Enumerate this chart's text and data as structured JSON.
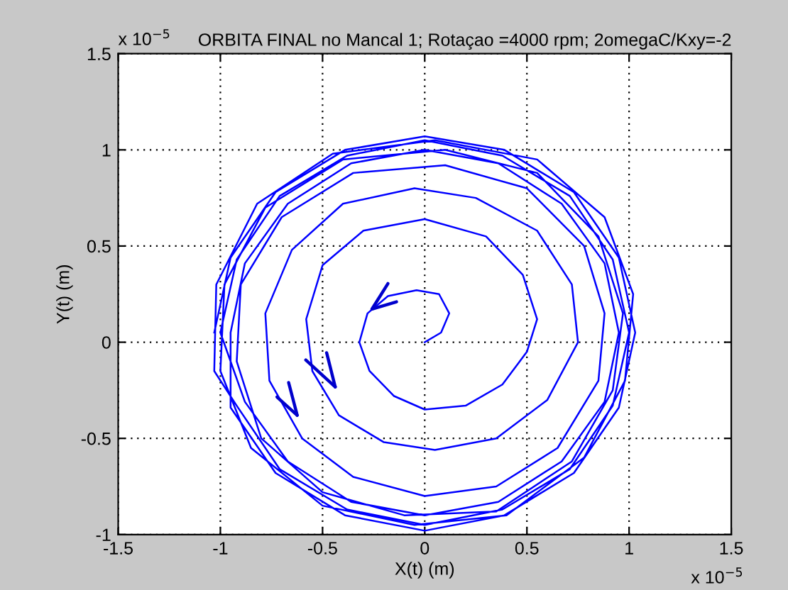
{
  "chart_data": {
    "type": "line",
    "title": "ORBITA FINAL no Mancal 1; Rotaçao =4000 rpm; 2omegaC/Kxy=-2",
    "xlabel": "X(t) (m)",
    "ylabel": "Y(t) (m)",
    "annotations": [
      "x 10$^{−5}$",
      "x 10$^{−5}$"
    ],
    "xlim": [
      -1.5,
      1.5
    ],
    "ylim": [
      -1,
      1.5
    ],
    "xticks": [
      -1.5,
      -1,
      -0.5,
      0,
      0.5,
      1,
      1.5
    ],
    "yticks": [
      -1,
      -0.5,
      0,
      0.5,
      1,
      1.5
    ],
    "grid": true,
    "line_style": "solid",
    "marker": "none",
    "series": [
      {
        "color": "#0000ff",
        "x": [
          0,
          0.08,
          0.12,
          0.07,
          -0.04,
          -0.18,
          -0.28,
          -0.32,
          -0.27,
          -0.15,
          0,
          0.2,
          0.38,
          0.5,
          0.55,
          0.48,
          0.3,
          0,
          -0.3,
          -0.5,
          -0.58,
          -0.55,
          -0.42,
          -0.2,
          0.05,
          0.35,
          0.6,
          0.75,
          0.72,
          0.55,
          0.25,
          -0.05,
          -0.4,
          -0.65,
          -0.78,
          -0.76,
          -0.6,
          -0.35,
          0,
          0.35,
          0.65,
          0.85,
          0.88,
          0.78,
          0.5,
          0.1,
          -0.35,
          -0.7,
          -0.9,
          -0.92,
          -0.8,
          -0.5,
          -0.1,
          0.35,
          0.72,
          0.92,
          0.97,
          0.85,
          0.55,
          0.1,
          -0.4,
          -0.78,
          -0.98,
          -1.0,
          -0.85,
          -0.5,
          -0.05,
          0.4,
          0.78,
          0.98,
          1.02,
          0.88,
          0.55,
          0.05,
          -0.45,
          -0.82,
          -1.02,
          -1.03,
          -0.92,
          -0.71,
          -0.38,
          0,
          0.38,
          0.71,
          0.92,
          1.0,
          0.92,
          0.71,
          0.38,
          0,
          -0.38,
          -0.71,
          -0.92,
          -1.0,
          -0.88,
          -0.67,
          -0.36,
          0,
          0.36,
          0.67,
          0.88,
          0.95,
          0.88,
          0.67,
          0.36,
          0,
          -0.36,
          -0.67,
          -0.88,
          -0.95,
          -0.95,
          -0.73,
          -0.39,
          0,
          0.39,
          0.73,
          0.95,
          1.03,
          0.95,
          0.73,
          0.39,
          0,
          -0.39,
          -0.73,
          -0.95,
          -1.03
        ],
        "values": [
          0,
          0.05,
          0.15,
          0.25,
          0.27,
          0.24,
          0.15,
          0,
          -0.15,
          -0.28,
          -0.35,
          -0.33,
          -0.22,
          -0.05,
          0.12,
          0.35,
          0.55,
          0.64,
          0.58,
          0.4,
          0.12,
          -0.15,
          -0.38,
          -0.52,
          -0.56,
          -0.5,
          -0.3,
          0,
          0.3,
          0.58,
          0.75,
          0.8,
          0.72,
          0.48,
          0.15,
          -0.2,
          -0.5,
          -0.7,
          -0.8,
          -0.75,
          -0.55,
          -0.2,
          0.15,
          0.5,
          0.8,
          0.92,
          0.88,
          0.65,
          0.3,
          -0.1,
          -0.5,
          -0.78,
          -0.9,
          -0.88,
          -0.62,
          -0.25,
          0.15,
          0.55,
          0.88,
          1.0,
          0.95,
          0.7,
          0.3,
          -0.15,
          -0.55,
          -0.85,
          -0.95,
          -0.9,
          -0.6,
          -0.2,
          0.25,
          0.65,
          0.95,
          1.05,
          0.98,
          0.72,
          0.3,
          -0.15,
          -0.33,
          -0.66,
          -0.87,
          -0.95,
          -0.87,
          -0.66,
          -0.33,
          0.05,
          0.43,
          0.76,
          0.97,
          1.05,
          0.97,
          0.76,
          0.43,
          0.05,
          -0.31,
          -0.62,
          -0.83,
          -0.9,
          -0.83,
          -0.62,
          -0.31,
          0.05,
          0.41,
          0.72,
          0.93,
          1.0,
          0.93,
          0.72,
          0.41,
          0.05,
          -0.34,
          -0.68,
          -0.9,
          -0.98,
          -0.9,
          -0.68,
          -0.34,
          0.05,
          0.44,
          0.78,
          1.0,
          1.07,
          1.0,
          0.78,
          0.44,
          0.05
        ]
      }
    ]
  }
}
